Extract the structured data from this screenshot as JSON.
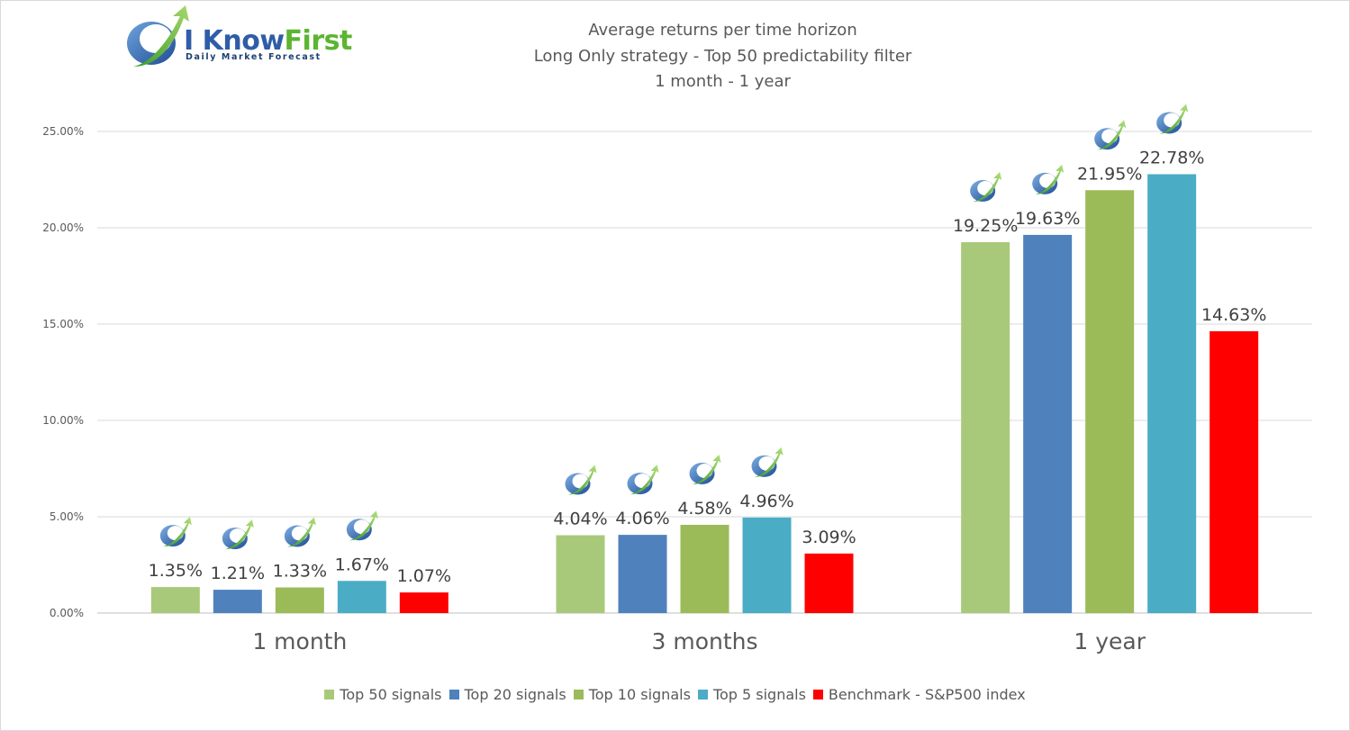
{
  "logo": {
    "brand_main": "I Know",
    "brand_accent": "First",
    "tagline": "Daily Market Forecast"
  },
  "chart_data": {
    "type": "bar",
    "title_lines": [
      "Average returns per time horizon",
      "Long Only strategy - Top 50 predictability filter",
      "1 month - 1 year"
    ],
    "categories": [
      "1 month",
      "3 months",
      "1 year"
    ],
    "ylim": [
      0,
      25
    ],
    "yticks": [
      0,
      5,
      10,
      15,
      20,
      25
    ],
    "ytick_labels": [
      "0.00%",
      "5.00%",
      "10.00%",
      "15.00%",
      "20.00%",
      "25.00%"
    ],
    "grid": true,
    "legend_position": "bottom",
    "series": [
      {
        "name": "Top 50 signals",
        "color": "#a9c97a",
        "values": [
          1.35,
          4.04,
          19.25
        ],
        "labels": [
          "1.35%",
          "4.04%",
          "19.25%"
        ],
        "badge_icon": "i-know-first-logo-icon"
      },
      {
        "name": "Top 20 signals",
        "color": "#4f81bd",
        "values": [
          1.21,
          4.06,
          19.63
        ],
        "labels": [
          "1.21%",
          "4.06%",
          "19.63%"
        ],
        "badge_icon": "i-know-first-logo-icon"
      },
      {
        "name": "Top 10 signals",
        "color": "#9bbb59",
        "values": [
          1.33,
          4.58,
          21.95
        ],
        "labels": [
          "1.33%",
          "4.58%",
          "21.95%"
        ],
        "badge_icon": "i-know-first-logo-icon"
      },
      {
        "name": "Top 5 signals",
        "color": "#4bacc6",
        "values": [
          1.67,
          4.96,
          22.78
        ],
        "labels": [
          "1.67%",
          "4.96%",
          "22.78%"
        ],
        "badge_icon": "i-know-first-logo-icon"
      },
      {
        "name": "Benchmark - S&P500 index",
        "color": "#ff0000",
        "values": [
          1.07,
          3.09,
          14.63
        ],
        "labels": [
          "1.07%",
          "3.09%",
          "14.63%"
        ]
      }
    ]
  }
}
